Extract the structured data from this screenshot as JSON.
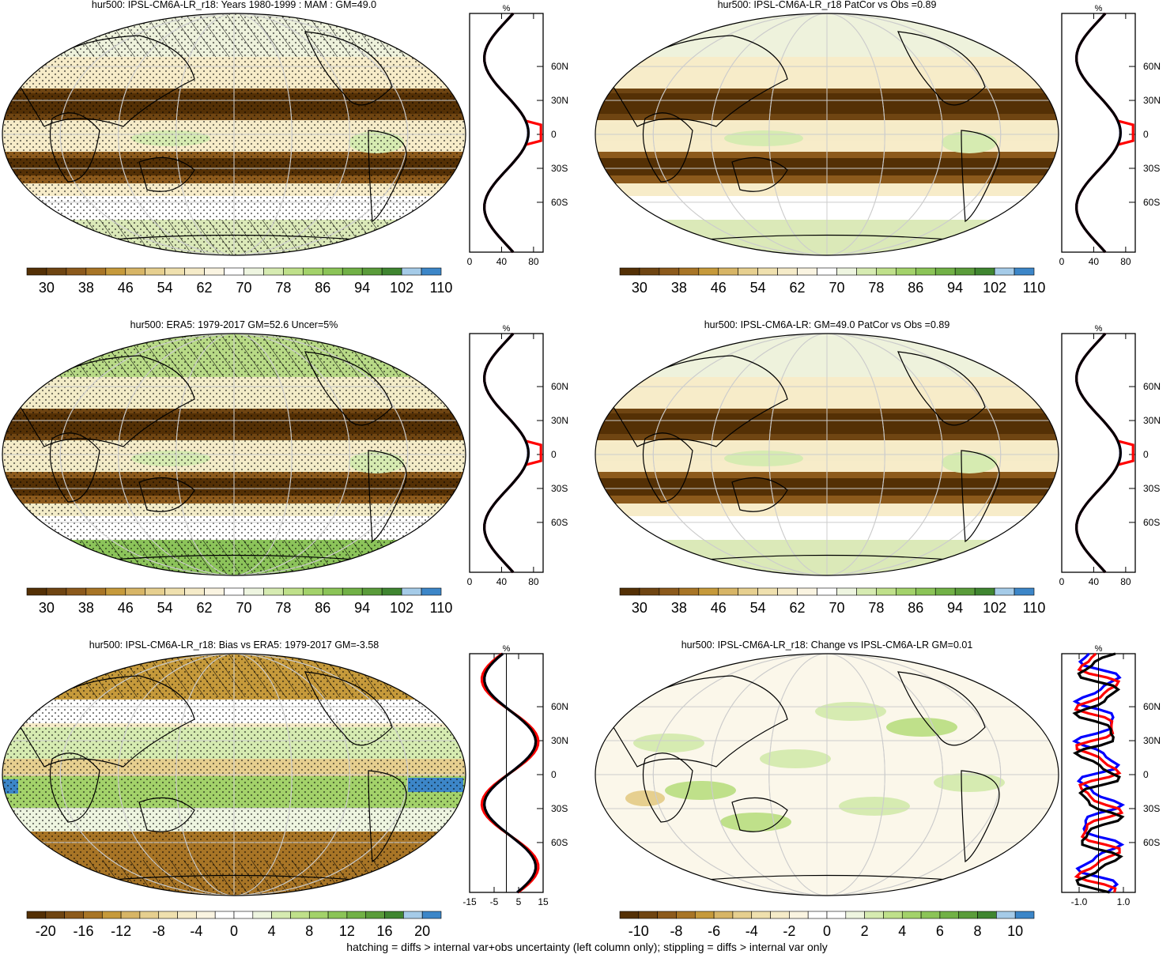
{
  "panels": [
    {
      "title": "hur500: IPSL-CM6A-LR_r18: Years 1980-1999 : MAM : GM=49.0",
      "map": "clim",
      "hatch": true,
      "stipple": true,
      "profile": {
        "ylabels": [
          "60N",
          "30N",
          "0",
          "30S",
          "60S"
        ],
        "xlabels": [
          "0",
          "40",
          "80"
        ],
        "unit": "%"
      },
      "colorbar": {
        "labels": [
          "30",
          "38",
          "46",
          "54",
          "62",
          "70",
          "78",
          "86",
          "94",
          "102",
          "110"
        ],
        "type": "abs"
      }
    },
    {
      "title": "hur500: IPSL-CM6A-LR_r18 PatCor vs Obs =0.89",
      "map": "clim",
      "hatch": false,
      "stipple": false,
      "profile": {
        "ylabels": [
          "60N",
          "30N",
          "0",
          "30S",
          "60S"
        ],
        "xlabels": [
          "0",
          "40",
          "80"
        ],
        "unit": "%"
      },
      "colorbar": {
        "labels": [
          "30",
          "38",
          "46",
          "54",
          "62",
          "70",
          "78",
          "86",
          "94",
          "102",
          "110"
        ],
        "type": "abs"
      }
    },
    {
      "title": "hur500: ERA5: 1979-2017 GM=52.6 Uncer=5%",
      "map": "obs",
      "hatch": true,
      "stipple": true,
      "profile": {
        "ylabels": [
          "60N",
          "30N",
          "0",
          "30S",
          "60S"
        ],
        "xlabels": [
          "0",
          "40",
          "80"
        ],
        "unit": "%"
      },
      "colorbar": {
        "labels": [
          "30",
          "38",
          "46",
          "54",
          "62",
          "70",
          "78",
          "86",
          "94",
          "102",
          "110"
        ],
        "type": "abs"
      }
    },
    {
      "title": "hur500: IPSL-CM6A-LR: GM=49.0 PatCor vs Obs =0.89",
      "map": "clim",
      "hatch": false,
      "stipple": false,
      "profile": {
        "ylabels": [
          "60N",
          "30N",
          "0",
          "30S",
          "60S"
        ],
        "xlabels": [
          "0",
          "40",
          "80"
        ],
        "unit": "%"
      },
      "colorbar": {
        "labels": [
          "30",
          "38",
          "46",
          "54",
          "62",
          "70",
          "78",
          "86",
          "94",
          "102",
          "110"
        ],
        "type": "abs"
      }
    },
    {
      "title": "hur500: IPSL-CM6A-LR_r18: Bias vs ERA5: 1979-2017 GM=-3.58",
      "map": "bias",
      "hatch": true,
      "stipple": true,
      "profile": {
        "ylabels": [
          "60N",
          "30N",
          "0",
          "30S",
          "60S"
        ],
        "xlabels": [
          "-15",
          "-5",
          "5",
          "15"
        ],
        "unit": "%"
      },
      "colorbar": {
        "labels": [
          "-20",
          "-16",
          "-12",
          "-8",
          "-4",
          "0",
          "4",
          "8",
          "12",
          "16",
          "20"
        ],
        "type": "diff"
      }
    },
    {
      "title": "hur500: IPSL-CM6A-LR_r18: Change vs IPSL-CM6A-LR GM=0.01",
      "map": "change",
      "hatch": false,
      "stipple": false,
      "profile": {
        "ylabels": [
          "60N",
          "30N",
          "0",
          "30S",
          "60S"
        ],
        "xlabels": [
          "-1.0",
          "1.0"
        ],
        "unit": "%"
      },
      "colorbar": {
        "labels": [
          "-10",
          "-8",
          "-6",
          "-4",
          "-2",
          "0",
          "2",
          "4",
          "6",
          "8",
          "10"
        ],
        "type": "diff"
      }
    }
  ],
  "footnote": "hatching = diffs > internal var+obs uncertainty (left column only); stippling = diffs > internal var only",
  "colors": {
    "abs": [
      "#543005",
      "#6f4512",
      "#8c5a1c",
      "#a87526",
      "#c69a3b",
      "#d7b566",
      "#e6cf8f",
      "#efe0ae",
      "#f5ebc8",
      "#faf4e1",
      "#ffffff",
      "#eef5e0",
      "#d6ebb1",
      "#bfe08a",
      "#a3d26a",
      "#8bc457",
      "#71b146",
      "#5a9c3a",
      "#3f8530",
      "#a5cbe8",
      "#3c86c8"
    ],
    "diff": [
      "#543005",
      "#6f4512",
      "#8c5a1c",
      "#a87526",
      "#c69a3b",
      "#d7b566",
      "#e6cf8f",
      "#efe0ae",
      "#f5ebc8",
      "#faf4e1",
      "#ffffff",
      "#ffffff",
      "#eef5e0",
      "#d6ebb1",
      "#bfe08a",
      "#a3d26a",
      "#8bc457",
      "#71b146",
      "#5a9c3a",
      "#3f8530",
      "#a5cbe8",
      "#3c86c8"
    ],
    "profile_model": "#ff0000",
    "profile_obs": "#0000ff",
    "profile_mean": "#000000"
  }
}
